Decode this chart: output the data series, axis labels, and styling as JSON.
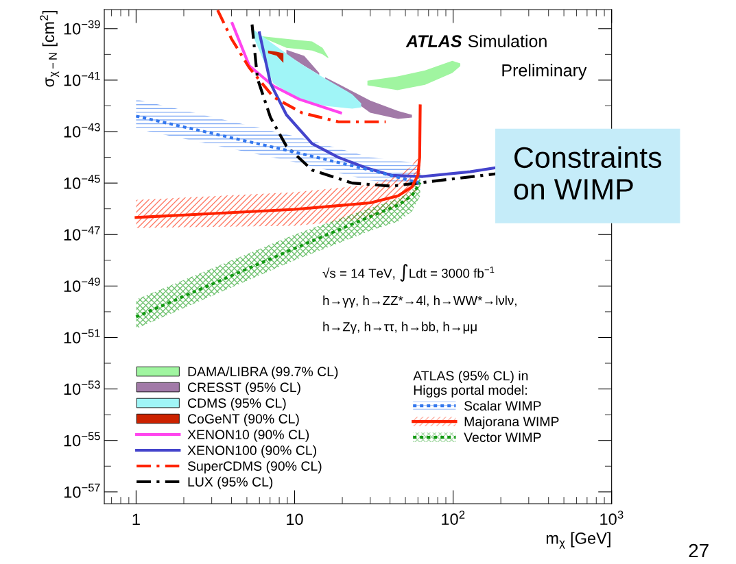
{
  "chart_data": {
    "type": "line",
    "log": "xy",
    "xlabel": "m$_{χ}$ [GeV]",
    "ylabel": "σ$_{χ−N}$ [cm$^{2}$]",
    "legend": "bottom left",
    "legend_title": "ATLAS (95% CL) in\nHiggs portal model:",
    "xlim": [
      0.63,
      1000
    ],
    "ylim": [
      3.5e-58,
      5.5e-39
    ],
    "xticks": [
      1,
      10,
      {
        "value": 100,
        "label": "10$^{2}$"
      },
      {
        "value": 1000,
        "label": "10$^{3}$"
      }
    ],
    "yticks": [
      {
        "value": 1e-57,
        "label": "10$^{−57}$"
      },
      {
        "value": 1e-56,
        "label": null
      },
      {
        "value": 1e-55,
        "label": "10$^{−55}$"
      },
      {
        "value": 1e-54,
        "label": null
      },
      {
        "value": 1e-53,
        "label": "10$^{−53}$"
      },
      {
        "value": 1e-52,
        "label": null
      },
      {
        "value": 1e-51,
        "label": "10$^{−51}$"
      },
      {
        "value": 1e-50,
        "label": null
      },
      {
        "value": 1e-49,
        "label": "10$^{−49}$"
      },
      {
        "value": 1e-48,
        "label": null
      },
      {
        "value": 1e-47,
        "label": "10$^{−47}$"
      },
      {
        "value": 1e-46,
        "label": null
      },
      {
        "value": 1e-45,
        "label": "10$^{−45}$"
      },
      {
        "value": 1e-44,
        "label": null
      },
      {
        "value": 1e-43,
        "label": "10$^{−43}$"
      },
      {
        "value": 1e-42,
        "label": null
      },
      {
        "value": 1e-41,
        "label": "10$^{−41}$"
      },
      {
        "value": 1e-40,
        "label": null
      },
      {
        "value": 1e-39,
        "label": "10$^{−39}$"
      }
    ],
    "series": [
      {
        "type": "area",
        "color": "#a0f5a0",
        "x": [
          28.8,
          44.6,
          66.5,
          98.8,
          111,
          111,
          98.8,
          66.5,
          44.6,
          28.8
        ],
        "values": [
          9.5e-42,
          1.4e-41,
          2.4e-41,
          5.6e-41,
          4.5e-41,
          3.5e-41,
          1.9e-41,
          6.6e-42,
          4.1e-42,
          6.3e-42
        ]
      },
      {
        "type": "area",
        "color": "#a27aa8",
        "x": [
          15.6,
          20,
          30,
          45,
          55,
          55,
          45,
          30,
          15.6
        ],
        "values": [
          1.3e-41,
          5.9e-42,
          1.6e-42,
          6.3e-43,
          4.5e-43,
          3.5e-43,
          3.1e-43,
          5.4e-43,
          1e-41
        ]
      },
      {
        "name": "DAMA/LIBRA (99.7% CL)",
        "type": "area",
        "color": "#a0f5a0",
        "x": [
          6.27,
          8.88,
          12.9,
          15.0,
          16.3,
          16.3,
          15.0,
          12.9,
          8.88,
          6.27
        ],
        "values": [
          5e-40,
          4e-40,
          3.2e-40,
          1.8e-40,
          7.9e-41,
          7.1e-41,
          1e-40,
          1.4e-40,
          1.8e-40,
          4.5e-40
        ]
      },
      {
        "name": "CRESST (95% CL)",
        "type": "area",
        "color": "#a27aa8",
        "x": [
          8.88,
          11.5,
          14.3,
          14.3,
          11.5,
          8.88
        ],
        "values": [
          1.5e-40,
          8.7e-41,
          1.9e-41,
          1.6e-41,
          3.6e-41,
          1e-40
        ]
      },
      {
        "name": "CDMS (95% CL)",
        "type": "area",
        "color": "#a0f5f7",
        "x": [
          5.39,
          7.35,
          10.7,
          15.6,
          23.1,
          26.3,
          26.3,
          23.1,
          15.6,
          10.7,
          7.35,
          5.39
        ],
        "values": [
          1e-39,
          2.5e-40,
          4.7e-41,
          1.15e-41,
          2.8e-42,
          1.26e-42,
          8.7e-43,
          7.8e-43,
          1e-42,
          1.8e-42,
          7.4e-42,
          6.3e-40
        ]
      },
      {
        "name": "CoGeNT (90% CL)",
        "type": "area",
        "color": "#cc2200",
        "x": [
          6.8,
          7.7,
          8.5,
          8.5,
          7.7,
          6.8
        ],
        "values": [
          1.4e-40,
          1.26e-40,
          1.1e-40,
          4.7e-41,
          8.9e-41,
          1.1e-40
        ]
      },
      {
        "name": "XENON10 (90% CL)",
        "line_style": "solid",
        "color": "#ff44ee",
        "x": [
          4.04,
          5.18,
          7.35,
          10.7,
          19.5
        ],
        "values": [
          1.6e-39,
          3.6e-41,
          5.9e-42,
          1.8e-42,
          5.4e-43
        ]
      },
      {
        "name": "XENON100 (90% CL)",
        "line_style": "solid",
        "color": "#4444cc",
        "x": [
          6.0,
          7.05,
          8.88,
          12.9,
          18.9,
          27.9,
          40.8,
          64.3,
          128,
          188
        ],
        "values": [
          6.9e-40,
          7.4e-42,
          4.5e-43,
          3.4e-44,
          1e-44,
          4e-45,
          2e-45,
          1.8e-45,
          2.75e-45,
          4e-45
        ]
      },
      {
        "name": "SuperCDMS (90% CL)",
        "line_style": "dashed",
        "color": "#ff2200",
        "x": [
          3.27,
          4.0,
          5.18,
          7.35,
          11.1,
          18.9,
          37.6
        ],
        "values": [
          5.2e-39,
          4e-40,
          3e-41,
          2.2e-42,
          5.4e-43,
          2.4e-43,
          2.4e-43
        ]
      },
      {
        "name": "LUX (95% CL)",
        "line_style": "dashed",
        "color": "#000000",
        "x": [
          5.39,
          5.83,
          7.05,
          8.88,
          12.9,
          23.1,
          40.8,
          59.5,
          188
        ],
        "values": [
          1.45e-39,
          1.15e-41,
          3.5e-43,
          2.7e-44,
          3.2e-45,
          1e-45,
          7.6e-46,
          1e-45,
          2.3e-45
        ]
      },
      {
        "name": "Scalar WIMP",
        "line_style": "dotted",
        "color": "#3377ee",
        "x": [
          1,
          10,
          30,
          62
        ],
        "values": [
          4e-43,
          1.6e-44,
          3.2e-45,
          1e-45
        ],
        "lower": [
          1.3e-43,
          6.5e-45,
          1.26e-45,
          7.9e-46
        ],
        "upper": [
          1.8e-42,
          6.6e-44,
          1e-44,
          5.8e-45
        ]
      },
      {
        "name": "Majorana WIMP",
        "line_style": "solid",
        "color": "#ff2200",
        "x": [
          1,
          10,
          30,
          45,
          55,
          60,
          61.5,
          62
        ],
        "values": [
          4.6e-47,
          9.5e-47,
          1.7e-46,
          3.2e-46,
          7.1e-46,
          2e-45,
          1e-44,
          1e-42
        ],
        "lower": [
          1.8e-47,
          2.2e-47,
          4e-47,
          1.26e-46,
          2.5e-46,
          5e-46,
          null,
          null
        ],
        "upper": [
          2.2e-46,
          4.4e-46,
          8.7e-46,
          2e-45,
          4.5e-45,
          1.26e-44,
          null,
          null
        ]
      },
      {
        "name": "Vector WIMP",
        "line_style": "dotted",
        "color": "#119911",
        "x": [
          1,
          10,
          30,
          45,
          55,
          62
        ],
        "values": [
          6.3e-51,
          2.9e-48,
          5e-47,
          1.4e-46,
          3.2e-46,
          1.05e-45
        ],
        "lower": [
          2.2e-51,
          1e-48,
          1.4e-47,
          3.2e-47,
          7.9e-47,
          3.2e-46
        ],
        "upper": [
          3e-50,
          1e-47,
          1.1e-46,
          2.5e-46,
          5e-46,
          3e-45
        ]
      }
    ],
    "annotations": [
      "ATLAS",
      "Simulation",
      "Preliminary",
      "√s = 14 TeV, ∫Ldt = 3000 fb$^{−1}$",
      "h→γγ, h→ZZ*→4l, h→WW*→lνlν,",
      "h→Zγ, h→ττ, h→bb, h→μμ",
      "Constraints\non WIMP",
      "27"
    ]
  }
}
